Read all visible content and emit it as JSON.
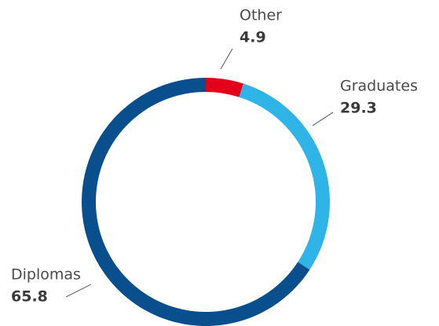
{
  "chart_data": {
    "type": "donut",
    "categories": [
      "Other",
      "Graduates",
      "Diplomas"
    ],
    "values": [
      4.9,
      29.3,
      65.8
    ],
    "colors": [
      "#e2001a",
      "#2eb4e6",
      "#0a4f8d"
    ]
  }
}
